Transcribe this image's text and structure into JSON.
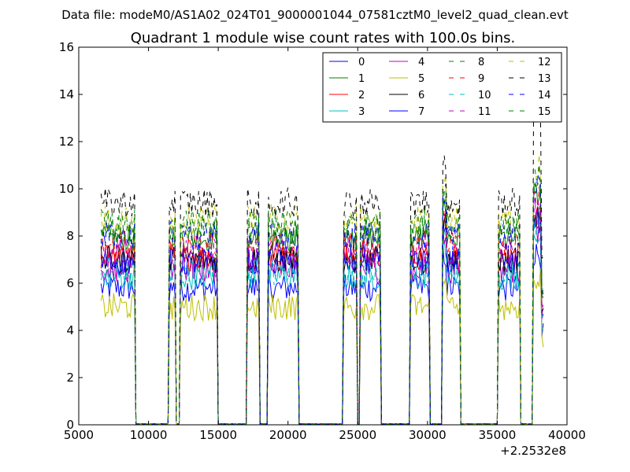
{
  "header": {
    "supertitle": "Data file: modeM0/AS1A02_024T01_9000001044_07581cztM0_level2_quad_clean.evt"
  },
  "chart_data": {
    "type": "line",
    "title": "Quadrant 1 module wise count rates with 100.0s bins.",
    "xlabel": "",
    "ylabel": "",
    "x_offset_label": "+2.2532e8",
    "xlim": [
      5000,
      40000
    ],
    "ylim": [
      0,
      16
    ],
    "xticks": [
      5000,
      10000,
      15000,
      20000,
      25000,
      30000,
      35000,
      40000
    ],
    "yticks": [
      0,
      2,
      4,
      6,
      8,
      10,
      12,
      14,
      16
    ],
    "grid": false,
    "legend_position": "top-right",
    "legend_columns": 4,
    "segments": [
      [
        6600,
        9000
      ],
      [
        11500,
        11900
      ],
      [
        12300,
        14900
      ],
      [
        17100,
        17900
      ],
      [
        18600,
        20700
      ],
      [
        24000,
        24900
      ],
      [
        25200,
        26600
      ],
      [
        28800,
        30100
      ],
      [
        31100,
        32300
      ],
      [
        35100,
        36600
      ],
      [
        37600,
        38300
      ]
    ],
    "series": [
      {
        "name": "0",
        "color": "#0000ff",
        "dash": "solid",
        "level": 5.8
      },
      {
        "name": "1",
        "color": "#008000",
        "dash": "solid",
        "level": 7.9
      },
      {
        "name": "2",
        "color": "#ff0000",
        "dash": "solid",
        "level": 7.1
      },
      {
        "name": "3",
        "color": "#00bfbf",
        "dash": "solid",
        "level": 6.3
      },
      {
        "name": "4",
        "color": "#bf00bf",
        "dash": "solid",
        "level": 6.6
      },
      {
        "name": "5",
        "color": "#bfbf00",
        "dash": "solid",
        "level": 5.0
      },
      {
        "name": "6",
        "color": "#000000",
        "dash": "solid",
        "level": 7.0
      },
      {
        "name": "7",
        "color": "#0000ff",
        "dash": "solid",
        "level": 6.9
      },
      {
        "name": "8",
        "color": "#008000",
        "dash": "dashed",
        "level": 8.2
      },
      {
        "name": "9",
        "color": "#ff0000",
        "dash": "dashed",
        "level": 7.6
      },
      {
        "name": "10",
        "color": "#00bfbf",
        "dash": "dashed",
        "level": 6.5
      },
      {
        "name": "11",
        "color": "#bf00bf",
        "dash": "dashed",
        "level": 7.3
      },
      {
        "name": "12",
        "color": "#bfbf00",
        "dash": "dashed",
        "level": 8.7
      },
      {
        "name": "13",
        "color": "#000000",
        "dash": "dashed",
        "level": 9.4
      },
      {
        "name": "14",
        "color": "#0000ff",
        "dash": "dashed",
        "level": 8.0
      },
      {
        "name": "15",
        "color": "#008000",
        "dash": "dashed",
        "level": 8.5
      }
    ]
  }
}
